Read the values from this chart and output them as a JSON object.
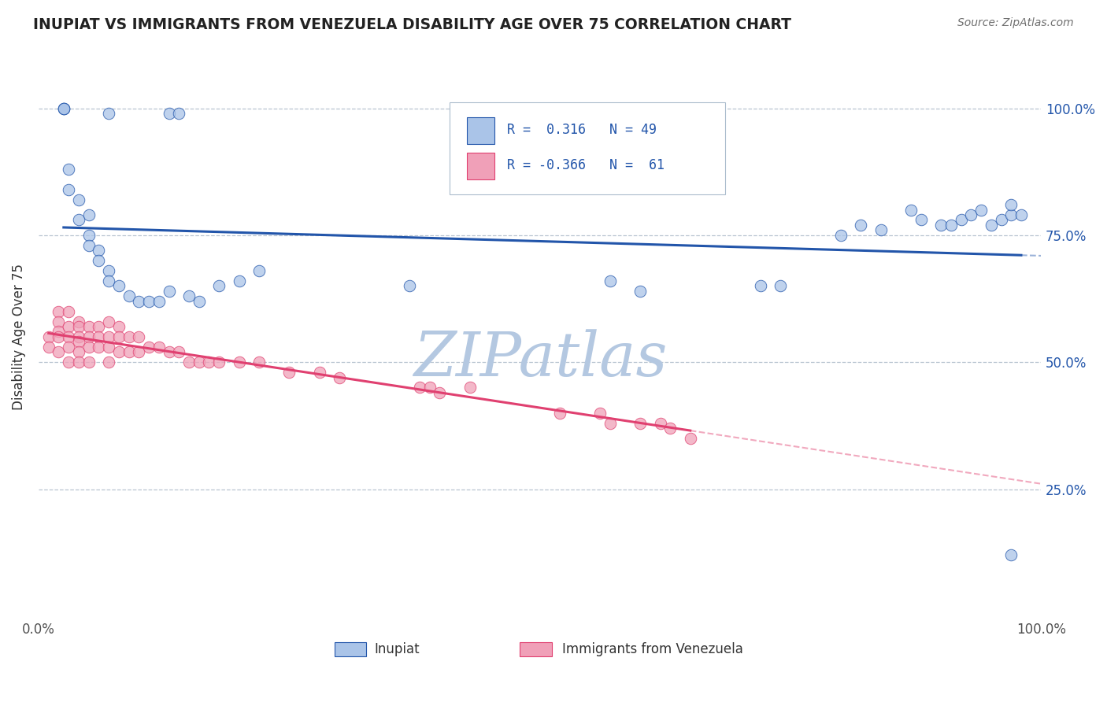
{
  "title": "INUPIAT VS IMMIGRANTS FROM VENEZUELA DISABILITY AGE OVER 75 CORRELATION CHART",
  "source": "Source: ZipAtlas.com",
  "ylabel": "Disability Age Over 75",
  "ytick_labels": [
    "25.0%",
    "50.0%",
    "75.0%",
    "100.0%"
  ],
  "ytick_values": [
    0.25,
    0.5,
    0.75,
    1.0
  ],
  "inupiat_color": "#aac4e8",
  "venezuela_color": "#f0a0b8",
  "inupiat_line_color": "#2255aa",
  "venezuela_line_color": "#e04070",
  "background_color": "#ffffff",
  "watermark": "ZIPatlas",
  "watermark_color_r": 180,
  "watermark_color_g": 200,
  "watermark_color_b": 225,
  "title_color": "#222222",
  "source_color": "#707070",
  "legend_text_color": "#2255aa",
  "inupiat_x": [
    0.025,
    0.025,
    0.025,
    0.07,
    0.13,
    0.14,
    0.03,
    0.03,
    0.04,
    0.04,
    0.05,
    0.05,
    0.05,
    0.06,
    0.06,
    0.07,
    0.07,
    0.08,
    0.09,
    0.1,
    0.11,
    0.12,
    0.13,
    0.15,
    0.16,
    0.18,
    0.2,
    0.22,
    0.37,
    0.57,
    0.6,
    0.72,
    0.74,
    0.8,
    0.82,
    0.84,
    0.87,
    0.88,
    0.9,
    0.91,
    0.92,
    0.93,
    0.94,
    0.95,
    0.96,
    0.97,
    0.97,
    0.98,
    0.97
  ],
  "inupiat_y": [
    1.0,
    1.0,
    1.0,
    0.99,
    0.99,
    0.99,
    0.88,
    0.84,
    0.82,
    0.78,
    0.79,
    0.75,
    0.73,
    0.72,
    0.7,
    0.68,
    0.66,
    0.65,
    0.63,
    0.62,
    0.62,
    0.62,
    0.64,
    0.63,
    0.62,
    0.65,
    0.66,
    0.68,
    0.65,
    0.66,
    0.64,
    0.65,
    0.65,
    0.75,
    0.77,
    0.76,
    0.8,
    0.78,
    0.77,
    0.77,
    0.78,
    0.79,
    0.8,
    0.77,
    0.78,
    0.79,
    0.81,
    0.79,
    0.12
  ],
  "venezuela_x": [
    0.01,
    0.01,
    0.02,
    0.02,
    0.02,
    0.02,
    0.02,
    0.03,
    0.03,
    0.03,
    0.03,
    0.03,
    0.04,
    0.04,
    0.04,
    0.04,
    0.04,
    0.04,
    0.05,
    0.05,
    0.05,
    0.05,
    0.06,
    0.06,
    0.06,
    0.07,
    0.07,
    0.07,
    0.07,
    0.08,
    0.08,
    0.08,
    0.09,
    0.09,
    0.1,
    0.1,
    0.11,
    0.12,
    0.13,
    0.14,
    0.15,
    0.16,
    0.17,
    0.18,
    0.2,
    0.22,
    0.25,
    0.28,
    0.3,
    0.38,
    0.39,
    0.4,
    0.43,
    0.52,
    0.56,
    0.57,
    0.6,
    0.62,
    0.63,
    0.65
  ],
  "venezuela_y": [
    0.55,
    0.53,
    0.6,
    0.58,
    0.56,
    0.55,
    0.52,
    0.6,
    0.57,
    0.55,
    0.53,
    0.5,
    0.58,
    0.57,
    0.55,
    0.54,
    0.52,
    0.5,
    0.57,
    0.55,
    0.53,
    0.5,
    0.57,
    0.55,
    0.53,
    0.58,
    0.55,
    0.53,
    0.5,
    0.57,
    0.55,
    0.52,
    0.55,
    0.52,
    0.55,
    0.52,
    0.53,
    0.53,
    0.52,
    0.52,
    0.5,
    0.5,
    0.5,
    0.5,
    0.5,
    0.5,
    0.48,
    0.48,
    0.47,
    0.45,
    0.45,
    0.44,
    0.45,
    0.4,
    0.4,
    0.38,
    0.38,
    0.38,
    0.37,
    0.35
  ]
}
